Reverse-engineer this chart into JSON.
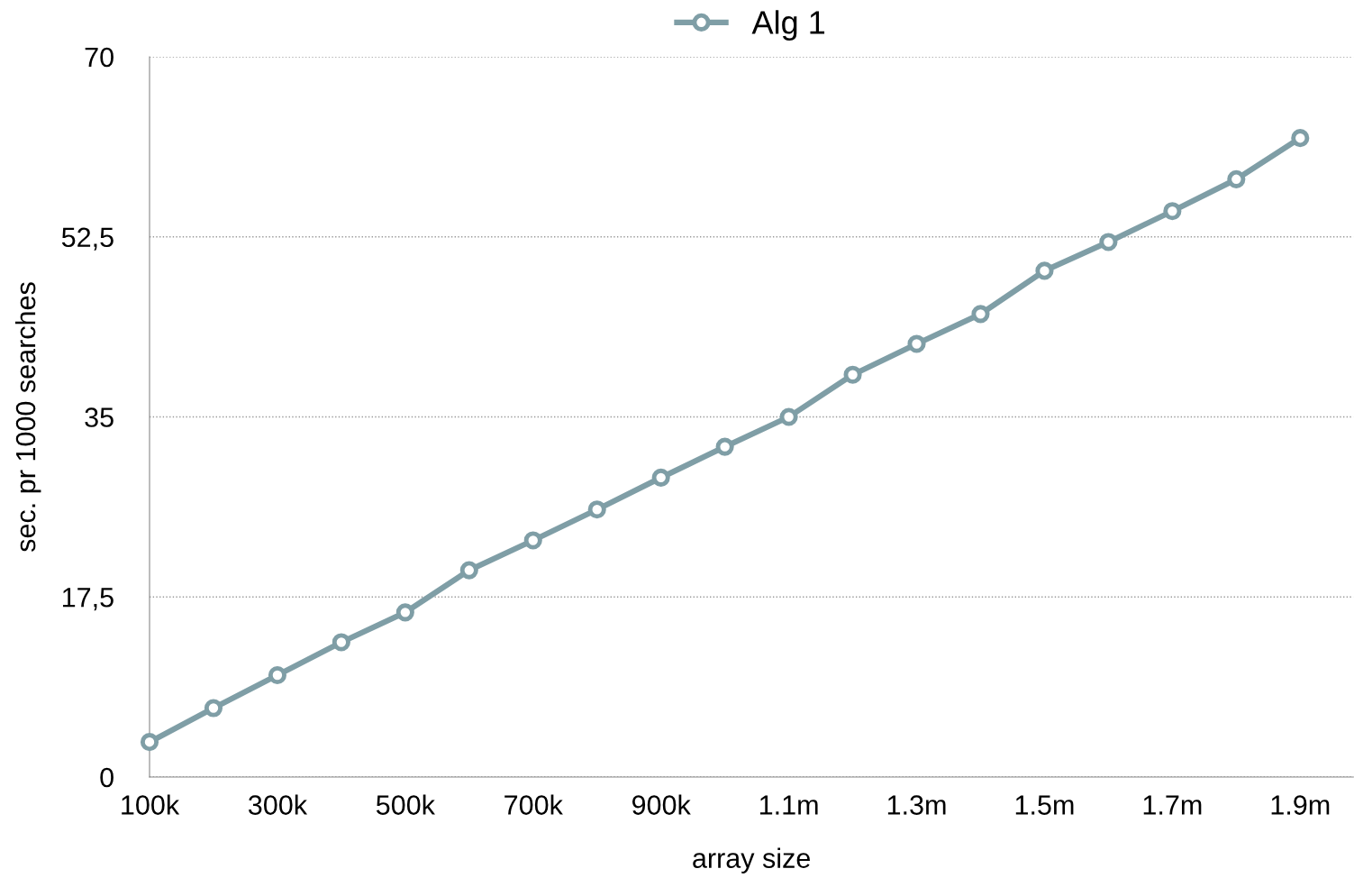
{
  "chart_data": {
    "type": "line",
    "xlabel": "array size",
    "ylabel": "sec. pr 1000 searches",
    "categories": [
      "100k",
      null,
      "300k",
      null,
      "500k",
      null,
      "700k",
      null,
      "900k",
      null,
      "1.1m",
      null,
      "1.3m",
      null,
      "1.5m",
      null,
      "1.7m",
      null,
      "1.9m"
    ],
    "series": [
      {
        "name": "Alg 1",
        "color": "#7f9ea6",
        "values": [
          3.4,
          6.7,
          9.9,
          13.1,
          16.0,
          20.1,
          23.0,
          26.0,
          29.1,
          32.1,
          35.0,
          39.1,
          42.1,
          45.0,
          49.2,
          52.0,
          55.0,
          58.1,
          62.1
        ]
      }
    ],
    "ylim": [
      0,
      70
    ],
    "yticks": [
      0,
      {
        "value": 17.5,
        "label": "17,5"
      },
      35,
      {
        "value": 52.5,
        "label": "52,5"
      },
      70
    ],
    "grid": "y",
    "legend": "top",
    "marker": "circle",
    "line_style": "solid"
  }
}
